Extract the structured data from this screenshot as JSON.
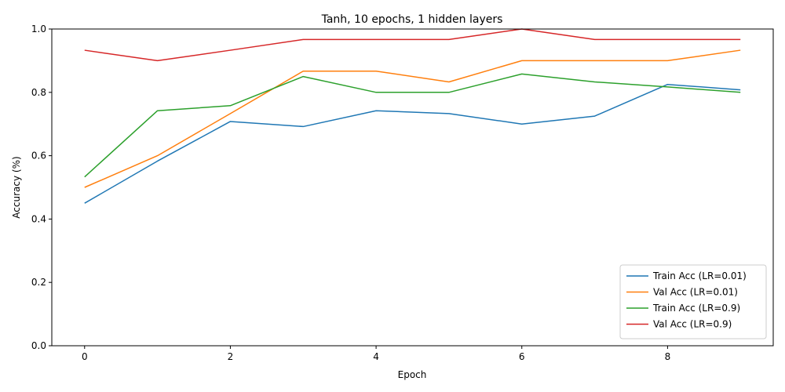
{
  "chart_data": {
    "type": "line",
    "title": "Tanh, 10 epochs, 1 hidden layers",
    "xlabel": "Epoch",
    "ylabel": "Accuracy (%)",
    "xlim": [
      -0.45,
      9.45
    ],
    "ylim": [
      0.0,
      1.0
    ],
    "xticks": [
      0,
      2,
      4,
      6,
      8
    ],
    "xtick_labels": [
      "0",
      "2",
      "4",
      "6",
      "8"
    ],
    "yticks": [
      0.0,
      0.2,
      0.4,
      0.6,
      0.8,
      1.0
    ],
    "ytick_labels": [
      "0.0",
      "0.2",
      "0.4",
      "0.6",
      "0.8",
      "1.0"
    ],
    "grid": false,
    "legend_position": "bottom-right",
    "x": [
      0,
      1,
      2,
      3,
      4,
      5,
      6,
      7,
      8,
      9
    ],
    "series": [
      {
        "name": "Train Acc (LR=0.01)",
        "color": "#1f77b4",
        "values": [
          0.45,
          0.583,
          0.708,
          0.692,
          0.742,
          0.733,
          0.7,
          0.725,
          0.825,
          0.808
        ]
      },
      {
        "name": "Val Acc (LR=0.01)",
        "color": "#ff7f0e",
        "values": [
          0.5,
          0.6,
          0.733,
          0.867,
          0.867,
          0.833,
          0.9,
          0.9,
          0.9,
          0.933
        ]
      },
      {
        "name": "Train Acc (LR=0.9)",
        "color": "#2ca02c",
        "values": [
          0.533,
          0.742,
          0.758,
          0.85,
          0.8,
          0.8,
          0.858,
          0.833,
          0.817,
          0.8
        ]
      },
      {
        "name": "Val Acc (LR=0.9)",
        "color": "#d62728",
        "values": [
          0.933,
          0.9,
          0.933,
          0.967,
          0.967,
          0.967,
          1.0,
          0.967,
          0.967,
          0.967
        ]
      }
    ]
  }
}
